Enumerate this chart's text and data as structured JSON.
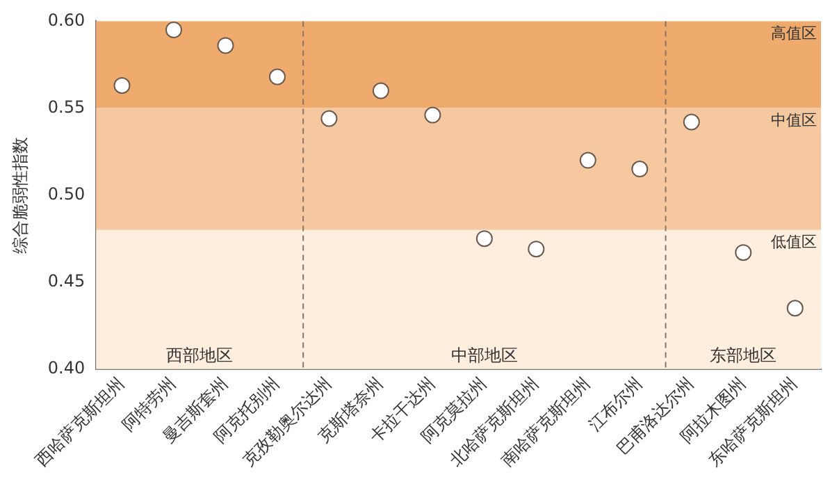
{
  "chart_data": {
    "type": "scatter",
    "ylabel": "综合脆弱性指数",
    "categories": [
      "西哈萨克斯坦州",
      "阿特劳州",
      "曼吉斯套州",
      "阿克托别州",
      "克孜勒奥尔达州",
      "克斯塔奈州",
      "卡拉干达州",
      "阿克莫拉州",
      "北哈萨克斯坦州",
      "南哈萨克斯坦州",
      "江布尔州",
      "巴甫洛达尔州",
      "阿拉木图州",
      "东哈萨克斯坦州"
    ],
    "series": [
      {
        "color": "#ffffff",
        "values": [
          0.563,
          0.595,
          0.586,
          0.568,
          0.544,
          0.56,
          0.546,
          0.475,
          0.469,
          0.52,
          0.515,
          0.542,
          0.467,
          0.435
        ]
      }
    ],
    "ylim": [
      0.4,
      0.6
    ],
    "yticks": [
      {
        "value": 0.4,
        "label": "0.40"
      },
      {
        "value": 0.45,
        "label": "0.45"
      },
      {
        "value": 0.5,
        "label": "0.50"
      },
      {
        "value": 0.55,
        "label": "0.55"
      },
      {
        "value": 0.6,
        "label": "0.60"
      }
    ],
    "bands": [
      {
        "axis": "y",
        "from": 0.55,
        "to": 0.6,
        "label": "高值区",
        "color": "#eeab6d"
      },
      {
        "axis": "y",
        "from": 0.48,
        "to": 0.55,
        "label": "中值区",
        "color": "#f6c89f"
      },
      {
        "axis": "y",
        "from": 0.4,
        "to": 0.48,
        "label": "低值区",
        "color": "#fdeedd"
      }
    ],
    "annotations": [
      "西部地区",
      "中部地区",
      "东部地区"
    ],
    "grid": false,
    "legend": false,
    "marker": "circle"
  }
}
